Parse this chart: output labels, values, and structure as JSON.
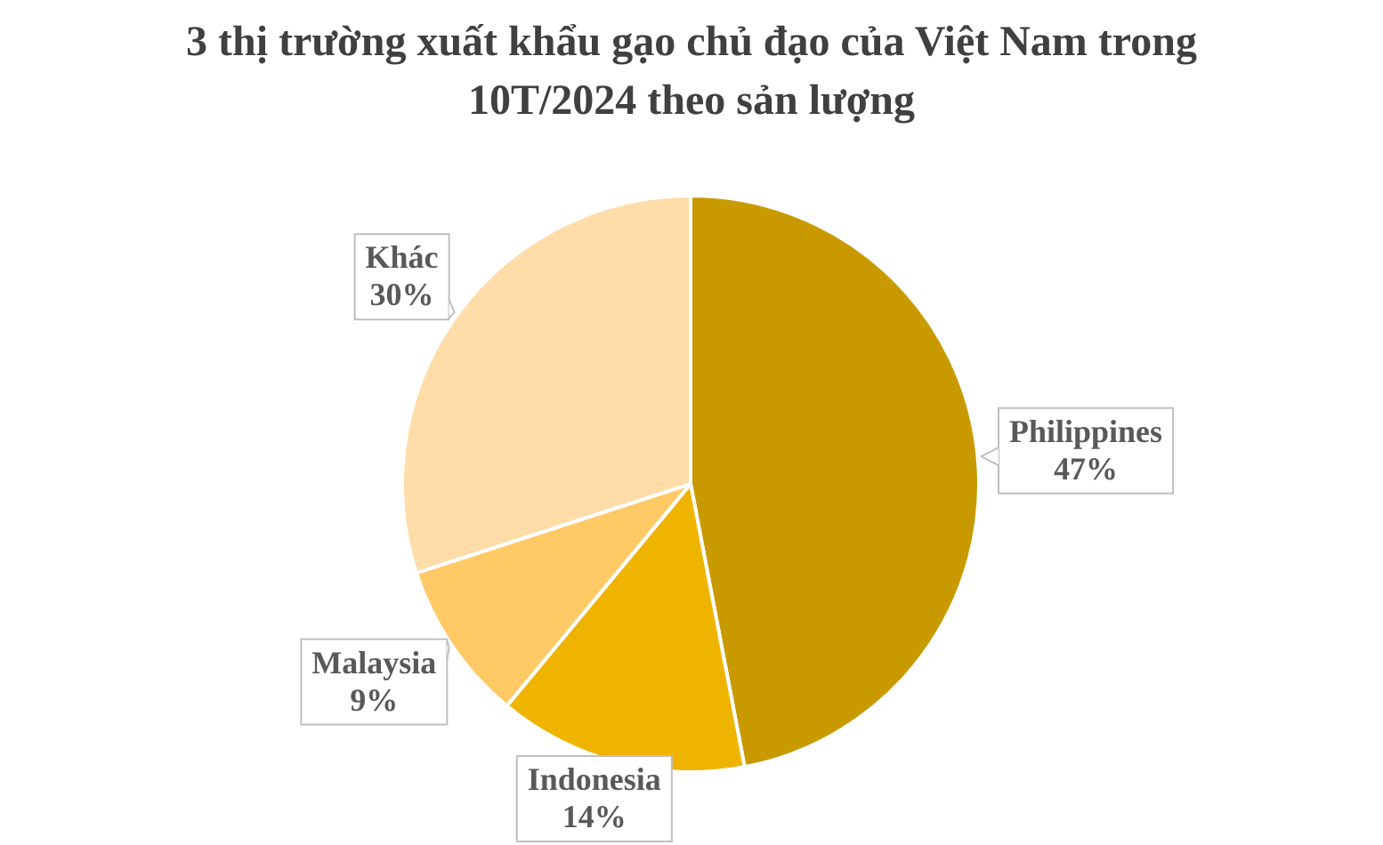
{
  "chart_data": {
    "type": "pie",
    "title": "3 thị trường xuất khẩu gạo chủ đạo của Việt Nam trong 10T/2024 theo sản lượng",
    "categories": [
      "Philippines",
      "Indonesia",
      "Malaysia",
      "Khác"
    ],
    "values": [
      47,
      14,
      9,
      30
    ],
    "colors": [
      "#c89a00",
      "#eeb400",
      "#ffc966",
      "#ffdca8"
    ],
    "value_labels": [
      "47%",
      "14%",
      "9%",
      "30%"
    ]
  }
}
